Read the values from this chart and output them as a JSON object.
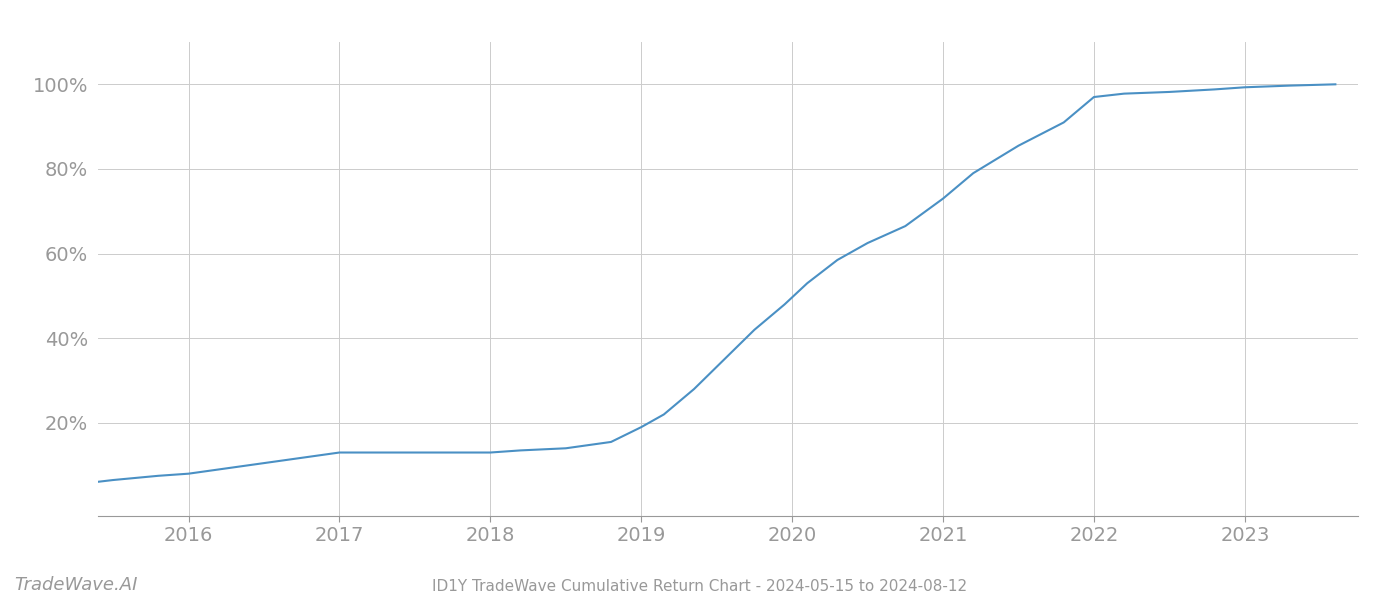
{
  "title": "ID1Y TradeWave Cumulative Return Chart - 2024-05-15 to 2024-08-12",
  "watermark": "TradeWave.AI",
  "line_color": "#4a90c4",
  "background_color": "#ffffff",
  "grid_color": "#cccccc",
  "x_values": [
    2015.38,
    2015.5,
    2015.65,
    2015.8,
    2016.0,
    2016.2,
    2016.5,
    2016.8,
    2017.0,
    2017.2,
    2017.5,
    2017.8,
    2018.0,
    2018.2,
    2018.5,
    2018.8,
    2019.0,
    2019.15,
    2019.35,
    2019.55,
    2019.75,
    2019.95,
    2020.1,
    2020.3,
    2020.5,
    2020.75,
    2021.0,
    2021.2,
    2021.5,
    2021.8,
    2022.0,
    2022.2,
    2022.5,
    2022.8,
    2023.0,
    2023.3,
    2023.6
  ],
  "y_values": [
    0.06,
    0.065,
    0.07,
    0.075,
    0.08,
    0.09,
    0.105,
    0.12,
    0.13,
    0.13,
    0.13,
    0.13,
    0.13,
    0.135,
    0.14,
    0.155,
    0.19,
    0.22,
    0.28,
    0.35,
    0.42,
    0.48,
    0.53,
    0.585,
    0.625,
    0.665,
    0.73,
    0.79,
    0.855,
    0.91,
    0.97,
    0.978,
    0.982,
    0.988,
    0.993,
    0.997,
    1.0
  ],
  "xlim": [
    2015.4,
    2023.75
  ],
  "ylim": [
    -0.02,
    1.1
  ],
  "xticks": [
    2016,
    2017,
    2018,
    2019,
    2020,
    2021,
    2022,
    2023
  ],
  "yticks": [
    0.2,
    0.4,
    0.6,
    0.8,
    1.0
  ],
  "ytick_labels": [
    "20%",
    "40%",
    "60%",
    "80%",
    "100%"
  ],
  "tick_color": "#999999",
  "axis_color": "#999999",
  "line_width": 1.5,
  "title_fontsize": 11,
  "tick_fontsize": 14,
  "watermark_fontsize": 13
}
